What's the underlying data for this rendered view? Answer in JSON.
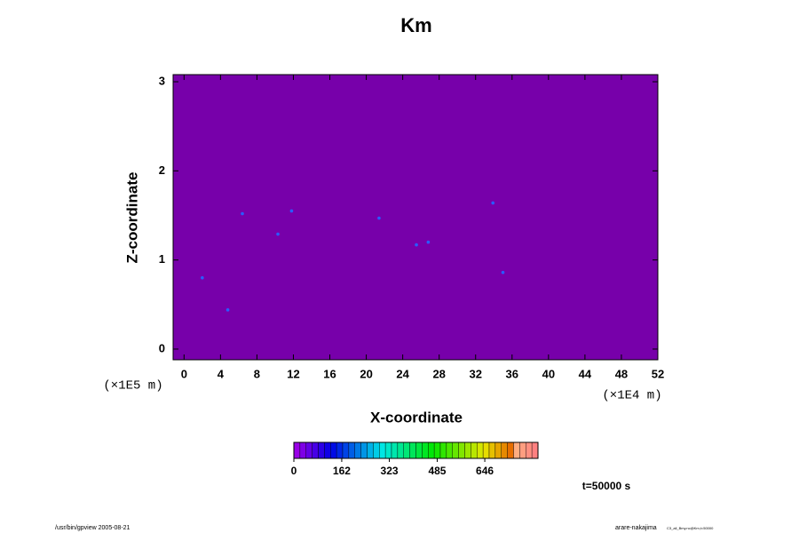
{
  "chart_data": {
    "type": "scatter",
    "title": "Km",
    "xlabel": "X-coordinate",
    "ylabel": "Z-coordinate",
    "xunit": "(×1E4 m)",
    "yunit": "(×1E5 m)",
    "xlim": [
      -1.2,
      52
    ],
    "ylim": [
      -0.12,
      3.08
    ],
    "xticks": [
      0,
      4,
      8,
      12,
      16,
      20,
      24,
      28,
      32,
      36,
      40,
      44,
      48,
      52
    ],
    "yticks": [
      0,
      1,
      2,
      3
    ],
    "background_color": "#7700aa",
    "x": [
      2,
      6.4,
      10.3,
      11.8,
      21.4,
      25.5,
      26.8,
      33.9,
      4.8,
      35
    ],
    "y": [
      0.8,
      1.52,
      1.29,
      1.55,
      1.47,
      1.17,
      1.2,
      1.64,
      0.44,
      0.86
    ],
    "color": "#2a5cff",
    "colorbar": {
      "lim": [
        0,
        826
      ],
      "ticks": [
        0,
        162,
        323,
        485,
        646
      ]
    },
    "annotation": "t=50000 s",
    "footer_left": "/usr/bin/gpview 2005-08-21",
    "footer_right": "arare-nakajima",
    "footer_right_small": "C3_all_Bmy.nc@Km,t=50000"
  }
}
